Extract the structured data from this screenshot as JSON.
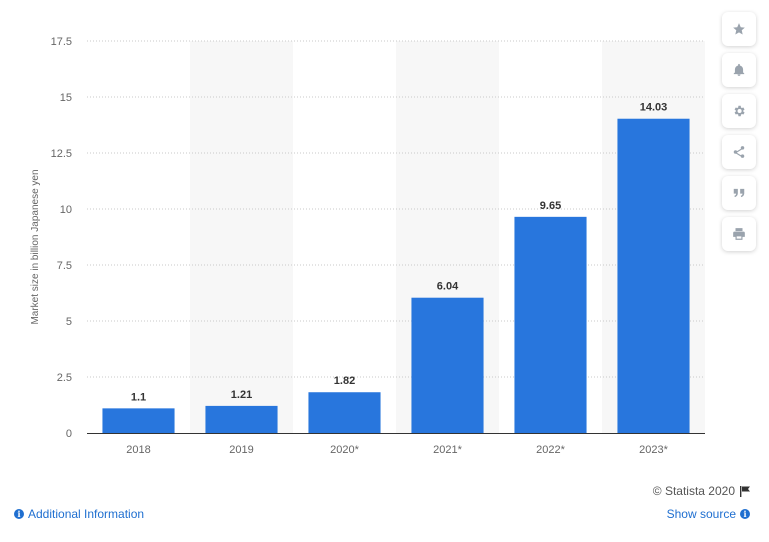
{
  "chart_data": {
    "type": "bar",
    "categories": [
      "2018",
      "2019",
      "2020*",
      "2021*",
      "2022*",
      "2023*"
    ],
    "values": [
      1.1,
      1.21,
      1.82,
      6.04,
      9.65,
      14.03
    ],
    "value_labels": [
      "1.1",
      "1.21",
      "1.82",
      "6.04",
      "9.65",
      "14.03"
    ],
    "ylabel": "Market size in billion Japanese yen",
    "ylim": [
      0,
      17.5
    ],
    "yticks": [
      "0",
      "2.5",
      "5",
      "7.5",
      "10",
      "12.5",
      "15",
      "17.5"
    ],
    "grid": true,
    "bar_color": "#2876dd"
  },
  "toolbar": {
    "buttons": [
      "star-icon",
      "bell-icon",
      "gear-icon",
      "share-icon",
      "quote-icon",
      "print-icon"
    ]
  },
  "footer": {
    "additional_info": "Additional Information",
    "credit": "© Statista 2020",
    "show_source": "Show source"
  }
}
